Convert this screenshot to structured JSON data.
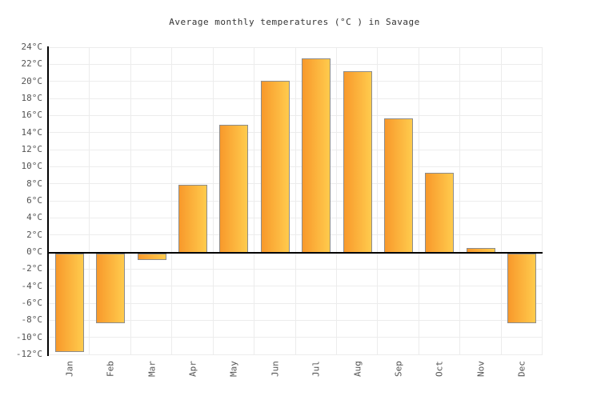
{
  "chart_data": {
    "type": "bar",
    "title": "Average monthly temperatures (°C ) in Savage",
    "categories": [
      "Jan",
      "Feb",
      "Mar",
      "Apr",
      "May",
      "Jun",
      "Jul",
      "Aug",
      "Sep",
      "Oct",
      "Nov",
      "Dec"
    ],
    "values": [
      -11.7,
      -8.3,
      -0.9,
      7.9,
      14.9,
      20.1,
      22.7,
      21.2,
      15.7,
      9.3,
      0.5,
      -8.3
    ],
    "unit": "°C",
    "xlabel": "",
    "ylabel": "",
    "ylim": [
      -12,
      24
    ],
    "ytick_step": 2,
    "ytick_suffix": "°C",
    "yticks": [
      "24°C",
      "22°C",
      "20°C",
      "18°C",
      "16°C",
      "14°C",
      "12°C",
      "10°C",
      "8°C",
      "6°C",
      "4°C",
      "2°C",
      "0°C",
      "-2°C",
      "-4°C",
      "-6°C",
      "-8°C",
      "-10°C",
      "-12°C"
    ],
    "grid": true,
    "legend": "none",
    "x_tick_rotation": -90,
    "colors": {
      "bar_gradient_left": "#F8992B",
      "bar_gradient_right": "#FFCB4D",
      "bar_border": "#8C8C8C",
      "grid_line": "#ECECEC",
      "axis_line": "#000000",
      "tick_label": "#545454",
      "title": "#333333",
      "background": "#FFFFFF"
    }
  }
}
